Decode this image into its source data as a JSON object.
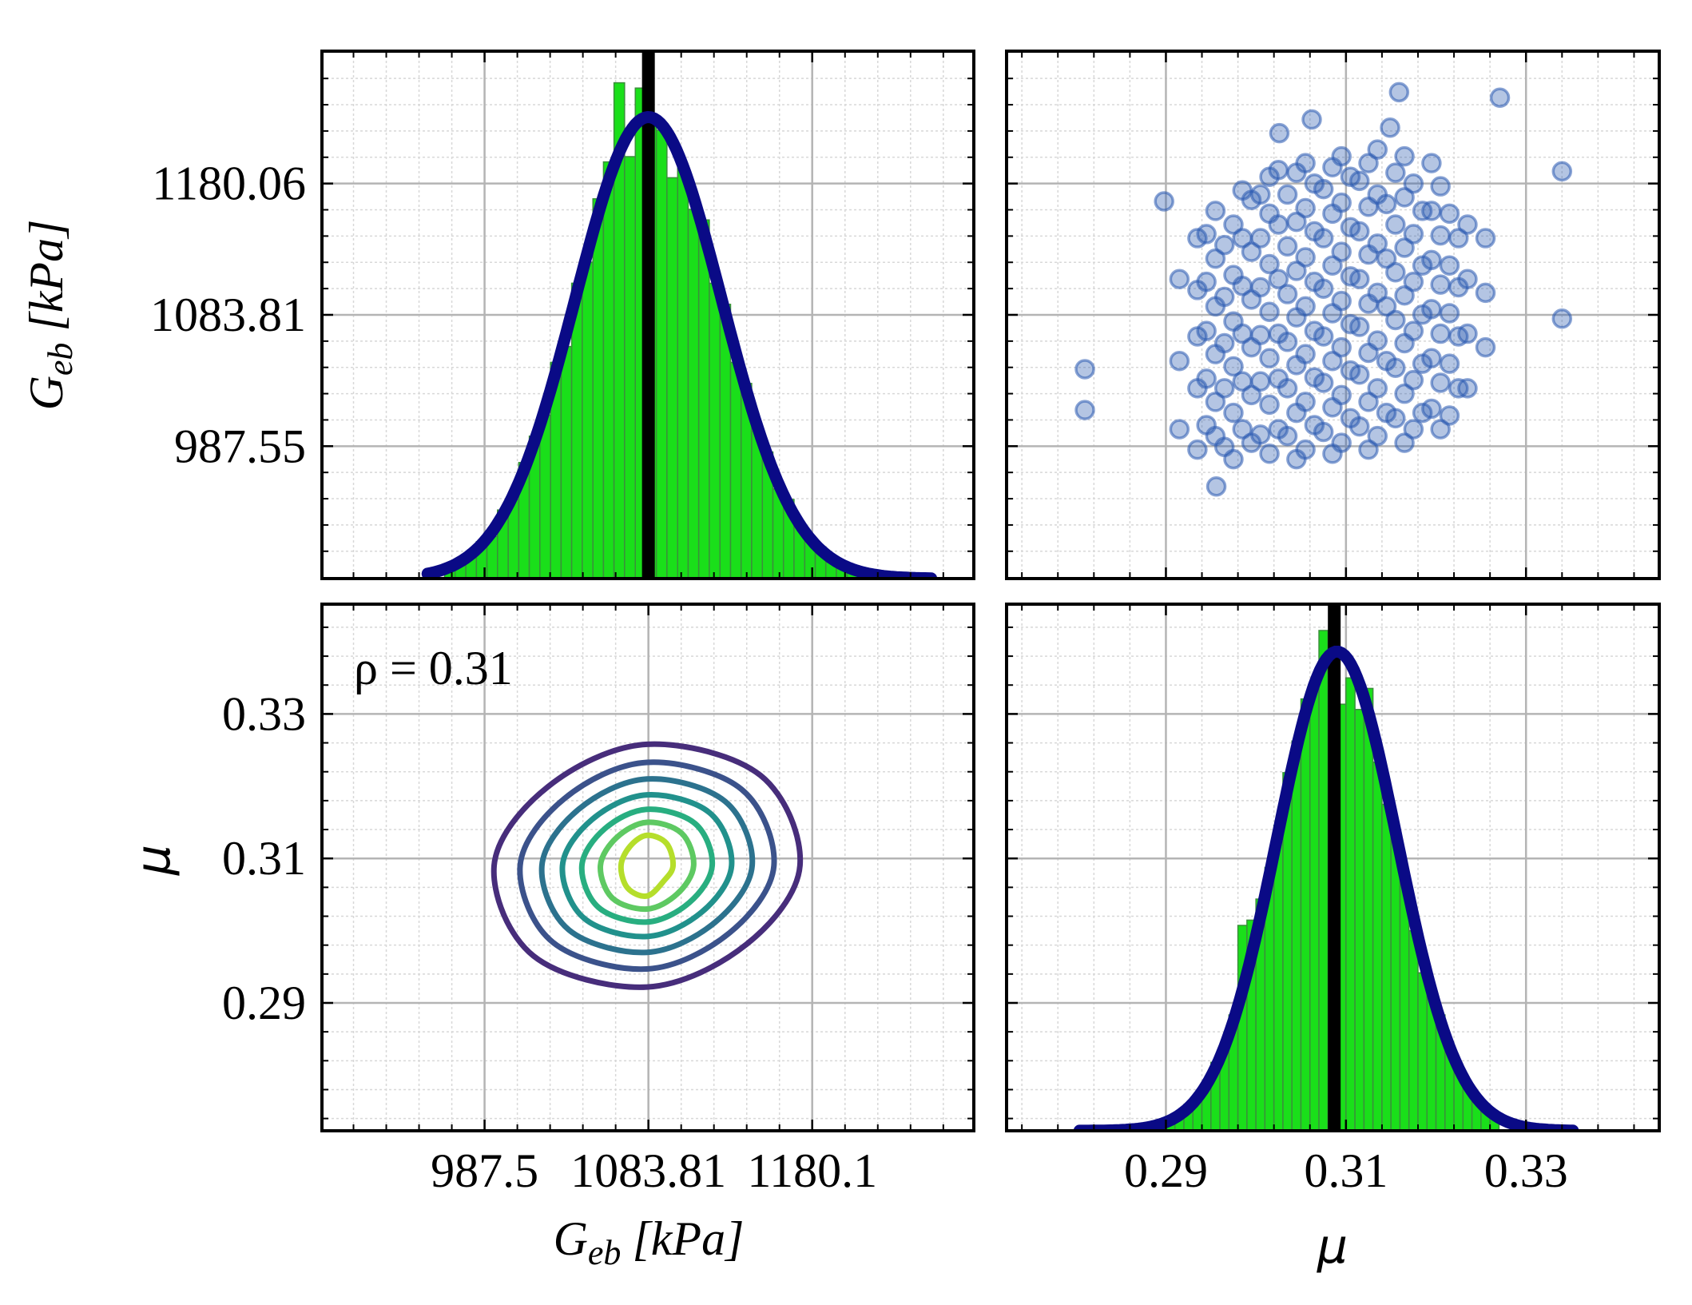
{
  "chart_data": [
    {
      "type": "histogram",
      "ylabel": {
        "symbol": "G",
        "subscript": "eb",
        "unit": "[kPa]"
      },
      "ylim": [
        890.5,
        1277.1
      ],
      "yticks": [
        987.55,
        1083.81,
        1180.06
      ],
      "count_lim": [
        0,
        100
      ],
      "bins": [
        964,
        970.2,
        976.5,
        982.7,
        988.9,
        995.1,
        1001.4,
        1007.6,
        1013.8,
        1020.0,
        1026.3,
        1032.5,
        1038.7,
        1044.9,
        1051.2,
        1057.4,
        1063.6,
        1069.8,
        1076.1,
        1082.3,
        1088.5,
        1094.7,
        1101.0,
        1107.2,
        1113.4,
        1119.6,
        1125.9,
        1132.1,
        1138.3,
        1144.5,
        1150.8,
        1157.0,
        1163.2,
        1169.4,
        1175.7,
        1181.9,
        1188.1,
        1194.3,
        1200.6,
        1206.8,
        1213.0
      ],
      "counts": [
        2,
        3,
        5,
        7,
        8,
        13,
        15,
        22,
        27,
        31,
        41,
        44,
        56,
        60,
        72,
        79,
        94,
        80,
        93,
        88,
        85,
        76,
        78,
        70,
        68,
        56,
        52,
        41,
        37,
        28,
        24,
        17,
        15,
        10,
        7,
        6,
        4,
        3,
        2,
        1
      ],
      "color": "#1adf1a",
      "edgecolor": "#3b8f3b",
      "fit": {
        "mean": 1083.81,
        "std": 43,
        "peak": 87.5,
        "xrange": [
          954,
          1250
        ],
        "color": "#0a0a86"
      },
      "vline": 1083.81,
      "vline_color": "#000000"
    },
    {
      "type": "scatter",
      "color": "#2858b0",
      "x": [
        0.2915,
        0.2915,
        0.2915,
        0.2935,
        0.2935,
        0.2935,
        0.2935,
        0.2935,
        0.2955,
        0.2955,
        0.2955,
        0.2955,
        0.2955,
        0.2955,
        0.2975,
        0.2975,
        0.2975,
        0.2975,
        0.2975,
        0.2975,
        0.2995,
        0.2995,
        0.2995,
        0.2995,
        0.2995,
        0.2995,
        0.3015,
        0.3015,
        0.3015,
        0.3015,
        0.3015,
        0.3015,
        0.3015,
        0.3035,
        0.3035,
        0.3035,
        0.3035,
        0.3035,
        0.3035,
        0.3055,
        0.3055,
        0.3055,
        0.3055,
        0.3055,
        0.3055,
        0.3055,
        0.3075,
        0.3075,
        0.3075,
        0.3075,
        0.3075,
        0.3075,
        0.3095,
        0.3095,
        0.3095,
        0.3095,
        0.3095,
        0.3095,
        0.3095,
        0.3115,
        0.3115,
        0.3115,
        0.3115,
        0.3115,
        0.3115,
        0.3135,
        0.3135,
        0.3135,
        0.3135,
        0.3135,
        0.3135,
        0.3135,
        0.3155,
        0.3155,
        0.3155,
        0.3155,
        0.3155,
        0.3155,
        0.3175,
        0.3175,
        0.3175,
        0.3175,
        0.3175,
        0.3175,
        0.3195,
        0.3195,
        0.3195,
        0.3195,
        0.3195,
        0.3195,
        0.3215,
        0.3215,
        0.3215,
        0.3215,
        0.3215,
        0.3235,
        0.3235,
        0.3235,
        0.3235,
        0.3255,
        0.3255,
        0.3255,
        0.2945,
        0.2945,
        0.2945,
        0.2945,
        0.2945,
        0.2965,
        0.2965,
        0.2965,
        0.2965,
        0.2965,
        0.2985,
        0.2985,
        0.2985,
        0.2985,
        0.2985,
        0.2985,
        0.3005,
        0.3005,
        0.3005,
        0.3005,
        0.3005,
        0.3005,
        0.3025,
        0.3025,
        0.3025,
        0.3025,
        0.3025,
        0.3025,
        0.3045,
        0.3045,
        0.3045,
        0.3045,
        0.3045,
        0.3045,
        0.3045,
        0.3065,
        0.3065,
        0.3065,
        0.3065,
        0.3065,
        0.3065,
        0.3085,
        0.3085,
        0.3085,
        0.3085,
        0.3085,
        0.3085,
        0.3085,
        0.3105,
        0.3105,
        0.3105,
        0.3105,
        0.3105,
        0.3105,
        0.3125,
        0.3125,
        0.3125,
        0.3125,
        0.3125,
        0.3125,
        0.3125,
        0.3145,
        0.3145,
        0.3145,
        0.3145,
        0.3145,
        0.3165,
        0.3165,
        0.3165,
        0.3165,
        0.3165,
        0.3165,
        0.3165,
        0.3185,
        0.3185,
        0.3185,
        0.3185,
        0.3185,
        0.3205,
        0.3205,
        0.3205,
        0.3205,
        0.3205,
        0.3205,
        0.3225,
        0.3225,
        0.3225,
        0.3225,
        0.281,
        0.281,
        0.2898,
        0.2956,
        0.3159,
        0.3271,
        0.334,
        0.334,
        0.3026,
        0.3149,
        0.3062
      ],
      "y": [
        1000,
        1050,
        1110,
        985,
        1030,
        1068,
        1102,
        1140,
        995,
        1020,
        1055,
        1090,
        1125,
        1160,
        978,
        1012,
        1046,
        1079,
        1113,
        1150,
        990,
        1025,
        1060,
        1095,
        1130,
        1168,
        982,
        1018,
        1052,
        1086,
        1121,
        1158,
        1185,
        995,
        1030,
        1064,
        1099,
        1134,
        1172,
        985,
        1020,
        1055,
        1090,
        1126,
        1162,
        1195,
        998,
        1034,
        1068,
        1103,
        1140,
        1176,
        990,
        1025,
        1060,
        1094,
        1130,
        1166,
        1200,
        1002,
        1040,
        1075,
        1110,
        1145,
        1182,
        995,
        1030,
        1065,
        1100,
        1136,
        1172,
        1205,
        1008,
        1045,
        1080,
        1115,
        1150,
        1188,
        1000,
        1036,
        1072,
        1108,
        1143,
        1180,
        1015,
        1052,
        1088,
        1124,
        1160,
        1195,
        1010,
        1048,
        1085,
        1120,
        1158,
        1030,
        1070,
        1110,
        1150,
        1060,
        1100,
        1140,
        1003,
        1037,
        1072,
        1108,
        1143,
        987,
        1030,
        1063,
        1097,
        1135,
        1000,
        1035,
        1070,
        1105,
        1140,
        1175,
        996,
        1035,
        1069,
        1104,
        1140,
        1172,
        1000,
        1037,
        1070,
        1110,
        1150,
        1190,
        978,
        1012,
        1047,
        1082,
        1116,
        1152,
        1188,
        1003,
        1038,
        1072,
        1108,
        1145,
        1180,
        982,
        1016,
        1050,
        1085,
        1120,
        1158,
        1192,
        1008,
        1043,
        1077,
        1112,
        1148,
        1185,
        985,
        1020,
        1056,
        1092,
        1128,
        1163,
        1195,
        1012,
        1050,
        1090,
        1125,
        1165,
        990,
        1026,
        1063,
        1098,
        1133,
        1170,
        1200,
        1012,
        1048,
        1084,
        1120,
        1160,
        1000,
        1034,
        1070,
        1106,
        1142,
        1178,
        1030,
        1068,
        1104,
        1140,
        1044,
        1014,
        1167,
        958,
        1247,
        1243,
        1189,
        1081,
        1217,
        1221,
        1227
      ]
    },
    {
      "type": "contour",
      "xlabel": {
        "symbol": "G",
        "subscript": "eb",
        "unit": "[kPa]"
      },
      "ylabel": "μ",
      "xlim": [
        891.9,
        1275.1
      ],
      "xticks": [
        987.5,
        1083.81,
        1180.1
      ],
      "ylim": [
        0.2723,
        0.3452
      ],
      "yticks": [
        0.29,
        0.31,
        0.33
      ],
      "annotation": "ρ = 0.31",
      "contours": [
        {
          "color": "#472d7b",
          "x": [
            1172.9,
            1149.7,
            1083,
            1024.6,
            993.1,
            1016.3,
            1083,
            1141.4
          ],
          "y": [
            0.309,
            0.3215,
            0.3258,
            0.3199,
            0.309,
            0.2965,
            0.2922,
            0.2981
          ]
        },
        {
          "color": "#3b528b",
          "x": [
            1157.6,
            1138.4,
            1083,
            1034.5,
            1008.4,
            1027.6,
            1083,
            1131.5
          ],
          "y": [
            0.309,
            0.3196,
            0.3233,
            0.3183,
            0.309,
            0.2984,
            0.2947,
            0.2997
          ]
        },
        {
          "color": "#2c728e",
          "x": [
            1144.8,
            1128.9,
            1083,
            1042.8,
            1021.2,
            1037.1,
            1083,
            1123.2
          ],
          "y": [
            0.309,
            0.3179,
            0.321,
            0.3168,
            0.309,
            0.3001,
            0.297,
            0.3012
          ]
        },
        {
          "color": "#21918c",
          "x": [
            1132.7,
            1119.9,
            1083,
            1050.7,
            1033.3,
            1046.1,
            1083,
            1115.3
          ],
          "y": [
            0.309,
            0.3163,
            0.3188,
            0.3154,
            0.309,
            0.3017,
            0.2992,
            0.3026
          ]
        },
        {
          "color": "#28ae80",
          "x": [
            1121.3,
            1111.4,
            1083,
            1058.1,
            1044.7,
            1054.6,
            1083,
            1107.9
          ],
          "y": [
            0.309,
            0.3148,
            0.3168,
            0.3141,
            0.309,
            0.3032,
            0.3012,
            0.3039
          ]
        },
        {
          "color": "#5ec962",
          "x": [
            1110.4,
            1103.3,
            1083,
            1065.2,
            1055.6,
            1062.7,
            1083,
            1100.8
          ],
          "y": [
            0.309,
            0.3135,
            0.315,
            0.3129,
            0.309,
            0.3045,
            0.303,
            0.3051
          ]
        },
        {
          "color": "#b5de2b",
          "x": [
            1098.3,
            1094.4,
            1083,
            1073.1,
            1067.7,
            1071.6,
            1083,
            1092.9
          ],
          "y": [
            0.309,
            0.3121,
            0.3132,
            0.3117,
            0.309,
            0.3059,
            0.3048,
            0.3069
          ]
        }
      ]
    },
    {
      "type": "histogram",
      "xlabel": "μ",
      "xlim": [
        0.2723,
        0.3448
      ],
      "xticks": [
        0.29,
        0.31,
        0.33
      ],
      "count_lim": [
        0,
        100
      ],
      "bins": [
        0.287,
        0.288,
        0.289,
        0.29,
        0.291,
        0.292,
        0.293,
        0.294,
        0.295,
        0.296,
        0.297,
        0.298,
        0.299,
        0.3,
        0.301,
        0.302,
        0.303,
        0.304,
        0.305,
        0.306,
        0.307,
        0.308,
        0.309,
        0.31,
        0.311,
        0.312,
        0.313,
        0.314,
        0.315,
        0.316,
        0.317,
        0.318,
        0.319,
        0.32,
        0.321,
        0.322,
        0.323,
        0.324,
        0.325,
        0.326,
        0.327
      ],
      "counts": [
        1,
        1,
        2,
        2,
        3,
        5,
        6,
        9,
        13,
        16,
        22,
        39,
        40,
        44,
        50,
        58,
        68,
        74,
        82,
        85,
        95,
        93,
        81,
        86,
        80,
        84,
        70,
        62,
        55,
        47,
        38,
        30,
        26,
        22,
        15,
        11,
        8,
        6,
        4,
        3
      ],
      "color": "#1adf1a",
      "edgecolor": "#3b8f3b",
      "fit": {
        "mean": 0.309,
        "std": 0.0067,
        "peak": 91,
        "xrange": [
          0.2804,
          0.3352
        ],
        "color": "#0a0a86"
      },
      "vline": 0.3087,
      "vline_color": "#000000"
    }
  ]
}
